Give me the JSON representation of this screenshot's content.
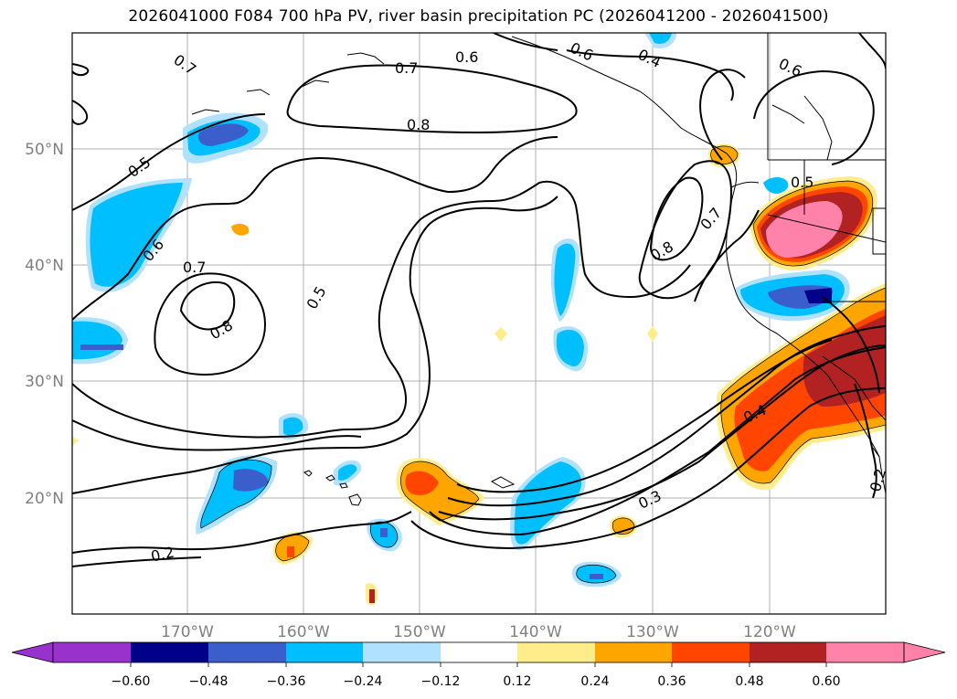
{
  "title": "2026041000 F084 700 hPa PV, river basin precipitation PC (2026041200 - 2026041500)",
  "axes": {
    "lon_labels": [
      "170°W",
      "160°W",
      "150°W",
      "140°W",
      "130°W",
      "120°W"
    ],
    "lat_labels": [
      "50°N",
      "40°N",
      "30°N",
      "20°N"
    ]
  },
  "contour_labels": [
    "0.7",
    "0.7",
    "0.6",
    "0.6",
    "0.4",
    "0.6",
    "0.8",
    "0.5",
    "0.5",
    "0.6",
    "0.7",
    "0.8",
    "0.5",
    "0.7",
    "0.8",
    "0.4",
    "0.3",
    "0.2",
    "0.2"
  ],
  "colorbar": {
    "ticks": [
      "−0.60",
      "−0.48",
      "−0.36",
      "−0.24",
      "−0.12",
      "0.12",
      "0.24",
      "0.36",
      "0.48",
      "0.60"
    ],
    "colors": [
      "#9932cc",
      "#00008b",
      "#3a5fcd",
      "#00bfff",
      "#b0e2ff",
      "#ffffff",
      "#ffec8b",
      "#ffa500",
      "#ff4500",
      "#b22222",
      "#ff82ab"
    ]
  }
}
